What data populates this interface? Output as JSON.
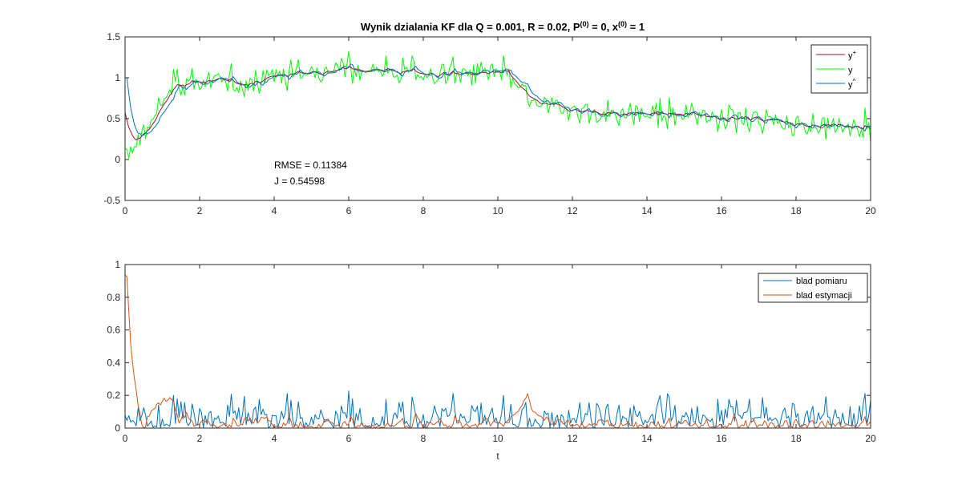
{
  "chart_data": [
    {
      "type": "line",
      "title_main": "Wynik dzialania KF dla Q = 0.001, R = 0.02, P",
      "title_sup1": "(0)",
      "title_mid": " = 0, x",
      "title_sup2": "(0)",
      "title_end": " = 1",
      "xlim": [
        0,
        20
      ],
      "ylim": [
        -0.5,
        1.5
      ],
      "xticks": [
        "0",
        "2",
        "4",
        "6",
        "8",
        "10",
        "12",
        "14",
        "16",
        "18",
        "20"
      ],
      "yticks": [
        "-0.5",
        "0",
        "0.5",
        "1",
        "1.5"
      ],
      "grid": false,
      "legend_position": "top-right",
      "annotations": [
        "RMSE = 0.11384",
        "J = 0.54598"
      ],
      "series": [
        {
          "name": "y",
          "name_sup": "+",
          "color": "#a2142f"
        },
        {
          "name": "y",
          "name_sup": "",
          "color": "#00ff00"
        },
        {
          "name": "y",
          "name_sup": "^",
          "color": "#0072bd"
        }
      ],
      "trend": {
        "x": [
          0,
          0.3,
          0.6,
          0.9,
          1.2,
          1.5,
          2,
          3,
          4,
          5,
          6,
          7,
          8,
          9,
          10,
          10.3,
          10.7,
          11,
          11.5,
          12,
          13,
          14,
          15,
          16,
          17,
          18,
          19,
          20
        ],
        "y": [
          0.05,
          0.15,
          0.38,
          0.62,
          0.85,
          0.96,
          0.97,
          0.93,
          1.02,
          1.08,
          1.1,
          1.1,
          1.05,
          1.04,
          1.05,
          1.03,
          0.75,
          0.67,
          0.63,
          0.6,
          0.57,
          0.56,
          0.54,
          0.53,
          0.5,
          0.45,
          0.41,
          0.38
        ]
      },
      "estimate_start": 1.0,
      "noise_std": 0.15,
      "filter_gain": 0.22,
      "dt": 0.05
    },
    {
      "type": "line",
      "xlabel": "t",
      "xlim": [
        0,
        20
      ],
      "ylim": [
        0,
        1
      ],
      "xticks": [
        "0",
        "2",
        "4",
        "6",
        "8",
        "10",
        "12",
        "14",
        "16",
        "18",
        "20"
      ],
      "yticks": [
        "0",
        "0.2",
        "0.4",
        "0.6",
        "0.8",
        "1"
      ],
      "grid": false,
      "legend_position": "top-right",
      "series": [
        {
          "name": "blad pomiaru",
          "color": "#0072bd"
        },
        {
          "name": "blad estymacji",
          "color": "#d95319"
        }
      ]
    }
  ]
}
